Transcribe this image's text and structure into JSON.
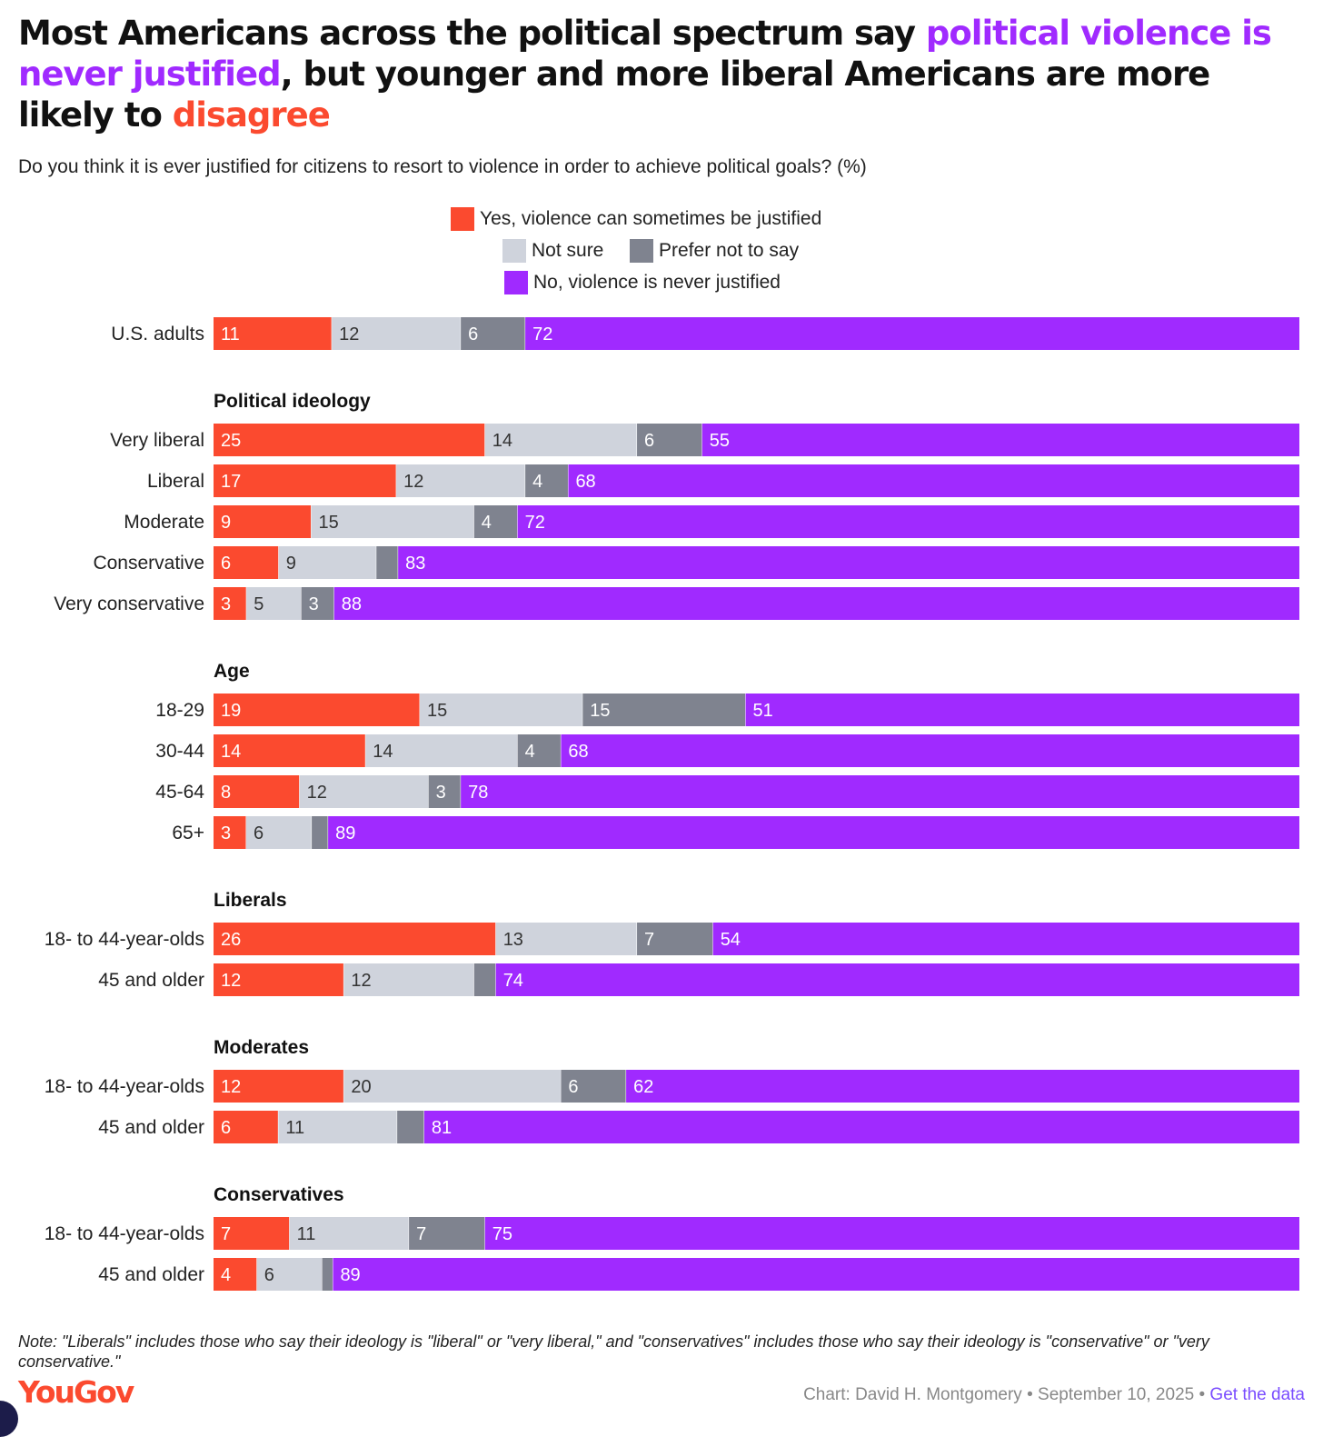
{
  "title": {
    "part1": "Most Americans across the political spectrum say ",
    "highlight1": "political violence is never justified",
    "part2": ", but younger and more liberal Americans are more likely to ",
    "highlight2": "disagree"
  },
  "subtitle": "Do you think it is ever justified for citizens to resort to violence in order to achieve political goals? (%)",
  "note": "Note: \"Liberals\" includes those who say their ideology is \"liberal\" or \"very liberal,\" and \"conservatives\" includes those who say their ideology is \"conservative\" or \"very conservative.\"",
  "footer": {
    "logo": "YouGov",
    "credit": "Chart: David H. Montgomery • September 10, 2025 • ",
    "link": "Get the data"
  },
  "chart_data": {
    "type": "bar",
    "orientation": "horizontal",
    "stacked": true,
    "unit": "%",
    "legend": [
      {
        "key": "yes",
        "label": "Yes, violence can sometimes be justified",
        "color": "#fb4a2f"
      },
      {
        "key": "not_sure",
        "label": "Not sure",
        "color": "#cfd3dc"
      },
      {
        "key": "prefer_not",
        "label": "Prefer not to say",
        "color": "#7f838f"
      },
      {
        "key": "no",
        "label": "No, violence is never justified",
        "color": "#a02aff"
      }
    ],
    "groups": [
      {
        "heading": "",
        "rows": [
          {
            "label": "U.S. adults",
            "values": [
              11,
              12,
              6,
              72
            ],
            "shown": [
              "11",
              "12",
              "6",
              "72"
            ]
          }
        ]
      },
      {
        "heading": "Political ideology",
        "rows": [
          {
            "label": "Very liberal",
            "values": [
              25,
              14,
              6,
              55
            ],
            "shown": [
              "25",
              "14",
              "6",
              "55"
            ]
          },
          {
            "label": "Liberal",
            "values": [
              17,
              12,
              4,
              68
            ],
            "shown": [
              "17",
              "12",
              "4",
              "68"
            ]
          },
          {
            "label": "Moderate",
            "values": [
              9,
              15,
              4,
              72
            ],
            "shown": [
              "9",
              "15",
              "4",
              "72"
            ]
          },
          {
            "label": "Conservative",
            "values": [
              6,
              9,
              2,
              83
            ],
            "shown": [
              "6",
              "9",
              "",
              "83"
            ]
          },
          {
            "label": "Very conservative",
            "values": [
              3,
              5,
              3,
              88
            ],
            "shown": [
              "3",
              "5",
              "3",
              "88"
            ]
          }
        ]
      },
      {
        "heading": "Age",
        "rows": [
          {
            "label": "18-29",
            "values": [
              19,
              15,
              15,
              51
            ],
            "shown": [
              "19",
              "15",
              "15",
              "51"
            ]
          },
          {
            "label": "30-44",
            "values": [
              14,
              14,
              4,
              68
            ],
            "shown": [
              "14",
              "14",
              "4",
              "68"
            ]
          },
          {
            "label": "45-64",
            "values": [
              8,
              12,
              3,
              78
            ],
            "shown": [
              "8",
              "12",
              "3",
              "78"
            ]
          },
          {
            "label": "65+",
            "values": [
              3,
              6,
              1.5,
              89
            ],
            "shown": [
              "3",
              "6",
              "",
              "89"
            ]
          }
        ]
      },
      {
        "heading": "Liberals",
        "rows": [
          {
            "label": "18- to 44-year-olds",
            "values": [
              26,
              13,
              7,
              54
            ],
            "shown": [
              "26",
              "13",
              "7",
              "54"
            ]
          },
          {
            "label": "45 and older",
            "values": [
              12,
              12,
              2,
              74
            ],
            "shown": [
              "12",
              "12",
              "",
              "74"
            ]
          }
        ]
      },
      {
        "heading": "Moderates",
        "rows": [
          {
            "label": "18- to 44-year-olds",
            "values": [
              12,
              20,
              6,
              62
            ],
            "shown": [
              "12",
              "20",
              "6",
              "62"
            ]
          },
          {
            "label": "45 and older",
            "values": [
              6,
              11,
              2.5,
              81
            ],
            "shown": [
              "6",
              "11",
              "",
              "81"
            ]
          }
        ]
      },
      {
        "heading": "Conservatives",
        "rows": [
          {
            "label": "18- to 44-year-olds",
            "values": [
              7,
              11,
              7,
              75
            ],
            "shown": [
              "7",
              "11",
              "7",
              "75"
            ]
          },
          {
            "label": "45 and older",
            "values": [
              4,
              6,
              1,
              89
            ],
            "shown": [
              "4",
              "6",
              "",
              "89"
            ]
          }
        ]
      }
    ]
  }
}
